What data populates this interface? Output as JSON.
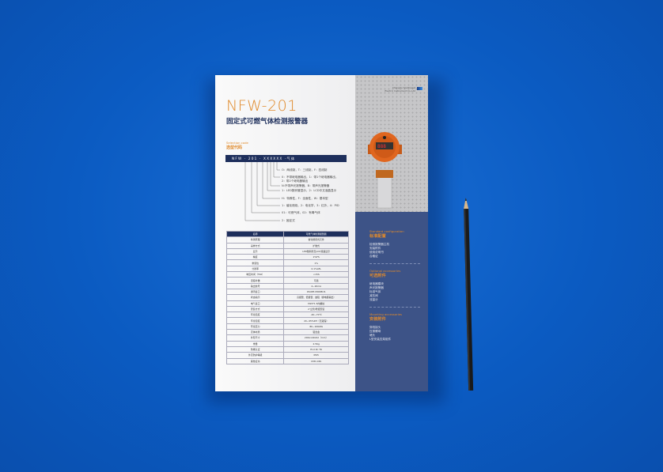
{
  "brochure": {
    "model": "NFW-201",
    "title": "固定式可燃气体检测报警器",
    "selection_code_en": "Selection code",
    "selection_code_cn": "选型代码",
    "code_bar": "NFW · 201 · XXXXXX ·气体",
    "code_options": [
      "O：两线制，T：三线制，F：四线制",
      "0：不带继电器输出，1：带1个继电器输出，",
      "2：带2个继电器输出",
      "N:不带声光报警器，B：带声光报警器",
      "1：LED数码管显示，2：LCD中文液晶显示",
      "H：特殊性，F：全面性，W：基本型",
      "1：催化燃烧，2：电化学，3：红外，4：PID",
      "01：可燃气体，02：有毒气体",
      "2：固定式"
    ],
    "spec_table": {
      "header": [
        "名称",
        "可燃气体检测报警器"
      ],
      "rows": [
        [
          "检测原理",
          "催化燃烧式元件"
        ],
        [
          "采样方式",
          "扩散式"
        ],
        [
          "显示",
          "LED数码管及LCD液晶显示"
        ],
        [
          "精度",
          "2%FS"
        ],
        [
          "重复性",
          "1%"
        ],
        [
          "分辨率",
          "0.1%LEL"
        ],
        [
          "响应时间（T90）",
          "<15S"
        ],
        [
          "温度补偿",
          "可选"
        ],
        [
          "输出信号",
          "4~20mA"
        ],
        [
          "通讯接口",
          "RS485 MODBUS"
        ],
        [
          "状态指示",
          "高报警、低报警、故障（继电器输出）"
        ],
        [
          "电气接口",
          "M20*1.5内螺纹"
        ],
        [
          "安装方式",
          "2″立管/壁挂安装"
        ],
        [
          "环境温度",
          "-40~70℃"
        ],
        [
          "环境湿度",
          "20~95%RH（无凝露）"
        ],
        [
          "环境压力",
          "86~106kPa"
        ],
        [
          "壳体材质",
          "铝合金"
        ],
        [
          "外形尺寸",
          "200x140x92（mm）"
        ],
        [
          "重量",
          "2.5Kg"
        ],
        [
          "防爆认证",
          "Exd IIC T6"
        ],
        [
          "外壳防护等级",
          "IP65"
        ],
        [
          "其他证书",
          "CMC,CPA"
        ]
      ]
    },
    "company": [
      "Chengdu Southwest",
      "Electric Instrument Co.,Ltd"
    ],
    "sections": [
      {
        "en": "Standard configuration",
        "cn": "标准配置",
        "items": [
          "检测报警器主机",
          "安装附件",
          "使用说明书",
          "合格证"
        ]
      },
      {
        "en": "Optional accessories",
        "cn": "可选附件",
        "items": [
          "继电器模块",
          "声光报警器",
          "标准气体",
          "减压阀",
          "流量计"
        ]
      },
      {
        "en": "Mounting accessories",
        "cn": "安装附件",
        "items": [
          "穿线接头",
          "压紧螺母",
          "堵头",
          "L型安装支架组件"
        ]
      }
    ]
  },
  "colors": {
    "background": "#0b5bc2",
    "accent": "#e08a2c",
    "navy": "#1e2f5c",
    "panel": "#3d5387",
    "device": "#e0661f"
  }
}
